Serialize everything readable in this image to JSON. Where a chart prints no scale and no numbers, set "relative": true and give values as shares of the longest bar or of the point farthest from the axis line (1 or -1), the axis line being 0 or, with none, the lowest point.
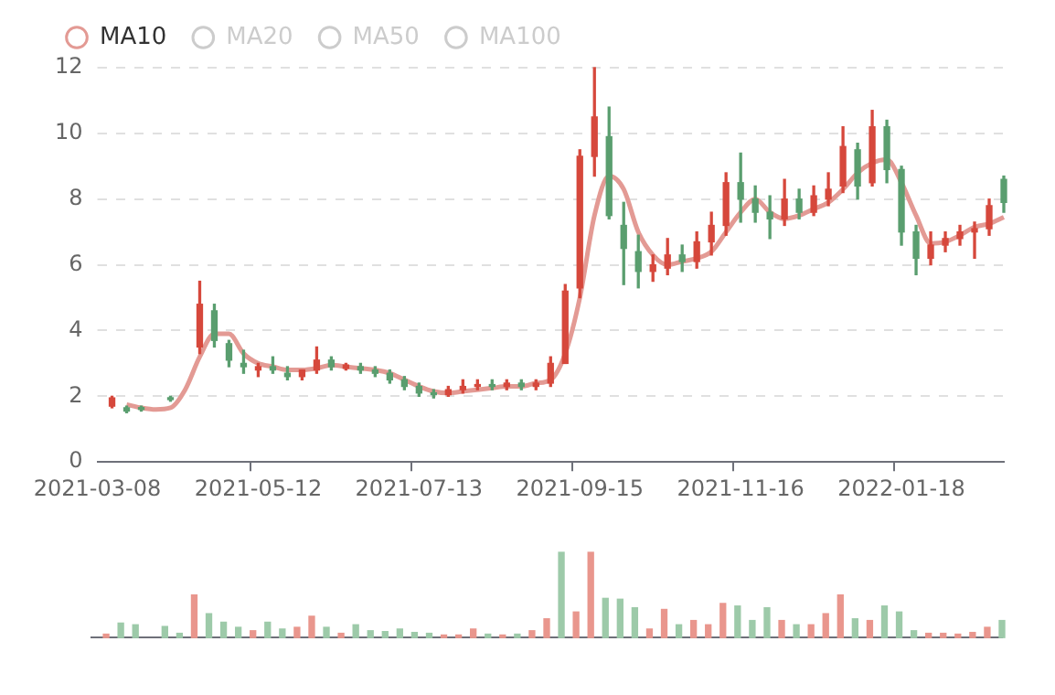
{
  "chart_data": [
    {
      "type": "candlestick",
      "categories": [
        "2021-03-08",
        null,
        null,
        null,
        null,
        null,
        null,
        null,
        null,
        null,
        null,
        "2021-05-12",
        null,
        null,
        null,
        null,
        null,
        null,
        null,
        null,
        null,
        null,
        "2021-07-13",
        null,
        null,
        null,
        null,
        null,
        null,
        null,
        null,
        null,
        null,
        "2021-09-15",
        null,
        null,
        null,
        null,
        null,
        null,
        null,
        null,
        null,
        null,
        "2021-11-16",
        null,
        null,
        null,
        null,
        null,
        null,
        null,
        null,
        null,
        null,
        "2022-01-18",
        null,
        null,
        null,
        null,
        null,
        null,
        null
      ],
      "ohlc": [
        null,
        [
          1.7,
          2.0,
          1.65,
          1.95
        ],
        [
          1.65,
          1.7,
          1.5,
          1.55
        ],
        [
          1.65,
          1.7,
          1.55,
          1.6
        ],
        null,
        [
          1.95,
          2.0,
          1.85,
          1.9
        ],
        null,
        [
          3.5,
          5.5,
          3.3,
          4.8
        ],
        [
          4.6,
          4.8,
          3.5,
          3.7
        ],
        [
          3.6,
          3.7,
          2.9,
          3.1
        ],
        [
          3.0,
          3.4,
          2.7,
          2.9
        ],
        [
          2.8,
          3.0,
          2.6,
          2.9
        ],
        [
          2.9,
          3.2,
          2.7,
          2.8
        ],
        [
          2.7,
          2.9,
          2.5,
          2.6
        ],
        [
          2.6,
          2.8,
          2.5,
          2.8
        ],
        [
          2.8,
          3.5,
          2.7,
          3.1
        ],
        [
          3.1,
          3.2,
          2.8,
          2.9
        ],
        [
          2.85,
          3.0,
          2.8,
          2.95
        ],
        [
          2.9,
          3.0,
          2.7,
          2.8
        ],
        [
          2.8,
          2.9,
          2.6,
          2.7
        ],
        [
          2.7,
          2.8,
          2.4,
          2.5
        ],
        [
          2.5,
          2.6,
          2.2,
          2.3
        ],
        [
          2.3,
          2.4,
          2.0,
          2.1
        ],
        [
          2.1,
          2.2,
          1.95,
          2.05
        ],
        [
          2.05,
          2.3,
          2.0,
          2.2
        ],
        [
          2.2,
          2.5,
          2.1,
          2.3
        ],
        [
          2.3,
          2.5,
          2.2,
          2.35
        ],
        [
          2.35,
          2.5,
          2.2,
          2.3
        ],
        [
          2.3,
          2.5,
          2.2,
          2.4
        ],
        [
          2.4,
          2.5,
          2.2,
          2.3
        ],
        [
          2.3,
          2.5,
          2.2,
          2.4
        ],
        [
          2.4,
          3.2,
          2.3,
          3.0
        ],
        [
          3.0,
          5.4,
          3.0,
          5.2
        ],
        [
          5.3,
          9.5,
          5.0,
          9.3
        ],
        [
          9.3,
          12.0,
          8.7,
          10.5
        ],
        [
          9.9,
          10.8,
          7.4,
          7.5
        ],
        [
          7.2,
          7.9,
          5.4,
          6.5
        ],
        [
          6.4,
          6.9,
          5.3,
          5.8
        ],
        [
          5.8,
          6.3,
          5.5,
          6.0
        ],
        [
          5.9,
          6.8,
          5.7,
          6.3
        ],
        [
          6.3,
          6.6,
          5.8,
          6.1
        ],
        [
          6.1,
          7.0,
          5.9,
          6.7
        ],
        [
          6.7,
          7.6,
          6.3,
          7.2
        ],
        [
          7.2,
          8.8,
          6.9,
          8.5
        ],
        [
          8.5,
          9.4,
          7.3,
          8.0
        ],
        [
          8.0,
          8.4,
          7.3,
          7.6
        ],
        [
          7.6,
          8.1,
          6.8,
          7.4
        ],
        [
          7.4,
          8.6,
          7.2,
          8.0
        ],
        [
          8.0,
          8.3,
          7.4,
          7.6
        ],
        [
          7.6,
          8.4,
          7.5,
          8.1
        ],
        [
          8.0,
          8.8,
          7.8,
          8.3
        ],
        [
          8.4,
          10.2,
          8.2,
          9.6
        ],
        [
          9.5,
          9.7,
          8.0,
          8.4
        ],
        [
          8.5,
          10.7,
          8.4,
          10.2
        ],
        [
          10.2,
          10.4,
          8.5,
          8.9
        ],
        [
          8.9,
          9.0,
          6.6,
          7.0
        ],
        [
          7.0,
          7.2,
          5.7,
          6.2
        ],
        [
          6.2,
          7.0,
          6.0,
          6.6
        ],
        [
          6.6,
          7.0,
          6.4,
          6.8
        ],
        [
          6.8,
          7.2,
          6.6,
          7.0
        ],
        [
          7.0,
          7.3,
          6.2,
          7.1
        ],
        [
          7.1,
          8.0,
          6.9,
          7.8
        ],
        [
          8.6,
          8.7,
          7.6,
          7.9
        ]
      ],
      "colors": [
        null,
        "#d6483c",
        "#5a9e6f",
        "#5a9e6f",
        null,
        "#5a9e6f",
        null,
        "#d6483c",
        "#5a9e6f",
        "#5a9e6f",
        "#5a9e6f",
        "#d6483c",
        "#5a9e6f",
        "#5a9e6f",
        "#d6483c",
        "#d6483c",
        "#5a9e6f",
        "#d6483c",
        "#5a9e6f",
        "#5a9e6f",
        "#5a9e6f",
        "#5a9e6f",
        "#5a9e6f",
        "#5a9e6f",
        "#d6483c",
        "#d6483c",
        "#d6483c",
        "#5a9e6f",
        "#d6483c",
        "#5a9e6f",
        "#d6483c",
        "#d6483c",
        "#d6483c",
        "#d6483c",
        "#d6483c",
        "#5a9e6f",
        "#5a9e6f",
        "#5a9e6f",
        "#d6483c",
        "#d6483c",
        "#5a9e6f",
        "#d6483c",
        "#d6483c",
        "#d6483c",
        "#5a9e6f",
        "#5a9e6f",
        "#5a9e6f",
        "#d6483c",
        "#5a9e6f",
        "#d6483c",
        "#d6483c",
        "#d6483c",
        "#5a9e6f",
        "#d6483c",
        "#5a9e6f",
        "#5a9e6f",
        "#5a9e6f",
        "#d6483c",
        "#d6483c",
        "#d6483c",
        "#d6483c",
        "#d6483c",
        "#5a9e6f"
      ],
      "series": [
        {
          "name": "MA10",
          "type": "line",
          "color": "#e39a94",
          "values": [
            null,
            null,
            1.75,
            1.65,
            1.6,
            1.65,
            2.2,
            3.2,
            3.9,
            3.9,
            3.3,
            3.0,
            2.9,
            2.8,
            2.8,
            2.85,
            2.95,
            2.9,
            2.85,
            2.8,
            2.7,
            2.5,
            2.3,
            2.15,
            2.1,
            2.15,
            2.2,
            2.25,
            2.3,
            2.3,
            2.4,
            2.5,
            3.3,
            5.0,
            7.5,
            8.7,
            8.3,
            7.0,
            6.3,
            6.0,
            6.1,
            6.2,
            6.4,
            7.0,
            7.6,
            8.0,
            7.6,
            7.4,
            7.5,
            7.7,
            7.9,
            8.3,
            8.8,
            9.1,
            9.2,
            8.5,
            7.5,
            6.65,
            6.7,
            6.9,
            7.15,
            7.25,
            7.45
          ]
        },
        {
          "name": "MA20",
          "type": "line",
          "color": "#cccccc",
          "values": [
            null,
            null,
            null,
            null,
            null,
            null,
            null,
            null,
            null,
            null,
            null,
            null,
            null,
            null,
            null,
            null,
            null,
            null,
            null,
            null,
            null,
            null,
            null,
            null,
            null,
            null,
            null,
            null,
            null,
            null,
            null,
            null,
            null,
            null,
            null,
            null,
            null,
            null,
            null,
            null,
            null,
            null,
            null,
            null,
            null,
            null,
            null,
            null,
            null,
            null,
            null,
            null,
            null,
            null,
            null,
            null,
            null,
            null,
            null,
            null,
            null,
            null,
            null
          ]
        },
        {
          "name": "MA50",
          "type": "line",
          "color": "#cccccc",
          "values": [
            null,
            null,
            null,
            null,
            null,
            null,
            null,
            null,
            null,
            null,
            null,
            null,
            null,
            null,
            null,
            null,
            null,
            null,
            null,
            null,
            null,
            null,
            null,
            null,
            null,
            null,
            null,
            null,
            null,
            null,
            null,
            null,
            null,
            null,
            null,
            null,
            null,
            null,
            null,
            null,
            null,
            null,
            null,
            null,
            null,
            null,
            null,
            null,
            null,
            null,
            null,
            null,
            null,
            null,
            null,
            null,
            null,
            null,
            null,
            null,
            null,
            null,
            null
          ]
        },
        {
          "name": "MA100",
          "type": "line",
          "color": "#cccccc",
          "values": [
            null,
            null,
            null,
            null,
            null,
            null,
            null,
            null,
            null,
            null,
            null,
            null,
            null,
            null,
            null,
            null,
            null,
            null,
            null,
            null,
            null,
            null,
            null,
            null,
            null,
            null,
            null,
            null,
            null,
            null,
            null,
            null,
            null,
            null,
            null,
            null,
            null,
            null,
            null,
            null,
            null,
            null,
            null,
            null,
            null,
            null,
            null,
            null,
            null,
            null,
            null,
            null,
            null,
            null,
            null,
            null,
            null,
            null,
            null,
            null,
            null,
            null,
            null
          ]
        }
      ],
      "ylim": [
        0,
        12
      ],
      "yticks": [
        0,
        2,
        4,
        6,
        8,
        10,
        12
      ],
      "grid": "y",
      "legend": "top left"
    },
    {
      "type": "bar",
      "relative": true,
      "categories": [
        null,
        null,
        null,
        null,
        null,
        null,
        null,
        null,
        null,
        null,
        null,
        null,
        null,
        null,
        null,
        null,
        null,
        null,
        null,
        null,
        null,
        null,
        null,
        null,
        null,
        null,
        null,
        null,
        null,
        null,
        null,
        null,
        null,
        null,
        null,
        null,
        null,
        null,
        null,
        null,
        null,
        null,
        null,
        null,
        null,
        null,
        null,
        null,
        null,
        null,
        null,
        null,
        null,
        null,
        null,
        null,
        null,
        null,
        null,
        null,
        null,
        null,
        null
      ],
      "values": [
        null,
        0.04,
        0.17,
        0.15,
        null,
        0.13,
        0.05,
        0.5,
        0.28,
        0.18,
        0.12,
        0.08,
        0.18,
        0.1,
        0.12,
        0.25,
        0.12,
        0.05,
        0.15,
        0.08,
        0.07,
        0.1,
        0.06,
        0.05,
        0.03,
        0.03,
        0.1,
        0.04,
        0.03,
        0.04,
        0.08,
        0.22,
        1.0,
        0.3,
        1.0,
        0.46,
        0.45,
        0.35,
        0.1,
        0.33,
        0.15,
        0.2,
        0.15,
        0.4,
        0.37,
        0.2,
        0.35,
        0.2,
        0.15,
        0.15,
        0.28,
        0.5,
        0.22,
        0.2,
        0.37,
        0.3,
        0.08,
        0.05,
        0.05,
        0.04,
        0.06,
        0.12,
        0.2
      ],
      "colors": [
        null,
        "#e9968d",
        "#9dcaa9",
        "#9dcaa9",
        null,
        "#9dcaa9",
        "#9dcaa9",
        "#e9968d",
        "#9dcaa9",
        "#9dcaa9",
        "#9dcaa9",
        "#e9968d",
        "#9dcaa9",
        "#9dcaa9",
        "#e9968d",
        "#e9968d",
        "#9dcaa9",
        "#e9968d",
        "#9dcaa9",
        "#9dcaa9",
        "#9dcaa9",
        "#9dcaa9",
        "#9dcaa9",
        "#9dcaa9",
        "#e9968d",
        "#e9968d",
        "#e9968d",
        "#9dcaa9",
        "#e9968d",
        "#9dcaa9",
        "#e9968d",
        "#e9968d",
        "#9dcaa9",
        "#e9968d",
        "#e9968d",
        "#9dcaa9",
        "#9dcaa9",
        "#9dcaa9",
        "#e9968d",
        "#e9968d",
        "#9dcaa9",
        "#e9968d",
        "#e9968d",
        "#e9968d",
        "#9dcaa9",
        "#9dcaa9",
        "#9dcaa9",
        "#e9968d",
        "#9dcaa9",
        "#e9968d",
        "#e9968d",
        "#e9968d",
        "#9dcaa9",
        "#e9968d",
        "#9dcaa9",
        "#9dcaa9",
        "#9dcaa9",
        "#e9968d",
        "#e9968d",
        "#e9968d",
        "#e9968d",
        "#e9968d",
        "#9dcaa9"
      ]
    }
  ]
}
